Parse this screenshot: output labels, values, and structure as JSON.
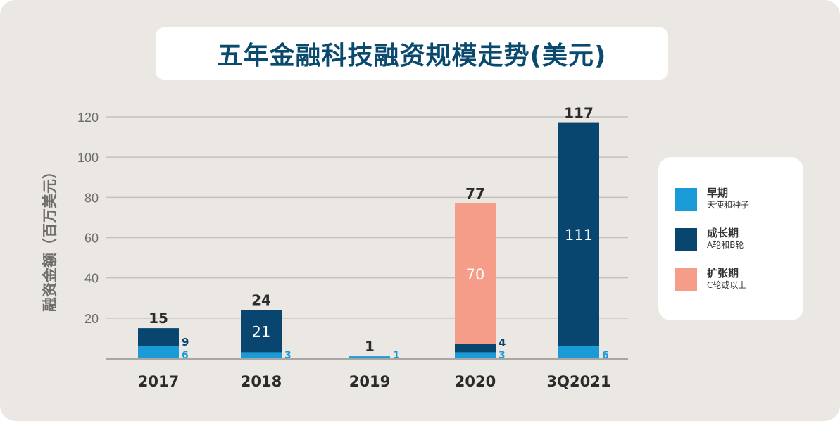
{
  "title": "五年金融科技融资规模走势(美元)",
  "colors": {
    "early": "#1a9ad6",
    "growth": "#08466f",
    "expansion": "#f59d89",
    "background": "#ebe8e3",
    "grid": "#c4c1bc",
    "axis": "#a9a7a4"
  },
  "legend": [
    {
      "title": "早期",
      "subtitle": "天使和种子",
      "color": "#1a9ad6"
    },
    {
      "title": "成长期",
      "subtitle": "A轮和B轮",
      "color": "#08466f"
    },
    {
      "title": "扩张期",
      "subtitle": "C轮或以上",
      "color": "#f59d89"
    }
  ],
  "chart_data": {
    "type": "bar",
    "stacked": true,
    "title": "五年金融科技融资规模走势(美元)",
    "ylabel": "融资金额（百万美元）",
    "xlabel": "",
    "categories": [
      "2017",
      "2018",
      "2019",
      "2020",
      "3Q2021"
    ],
    "yticks": [
      "20",
      "40",
      "60",
      "80",
      "100",
      "120"
    ],
    "ylim": [
      0,
      120
    ],
    "grid": true,
    "legend_position": "right",
    "series": [
      {
        "name": "早期",
        "values": [
          6,
          3,
          1,
          3,
          6
        ]
      },
      {
        "name": "成长期",
        "values": [
          9,
          21,
          0,
          4,
          111
        ]
      },
      {
        "name": "扩张期",
        "values": [
          0,
          0,
          0,
          70,
          0
        ]
      }
    ],
    "totals": [
      "15",
      "24",
      "1",
      "77",
      "117"
    ],
    "data_labels": {
      "early": [
        "6",
        "3",
        "1",
        "3",
        "6"
      ],
      "growth": [
        "9",
        "21",
        "",
        "4",
        "111"
      ],
      "expansion": [
        "",
        "",
        "",
        "70",
        ""
      ]
    }
  }
}
